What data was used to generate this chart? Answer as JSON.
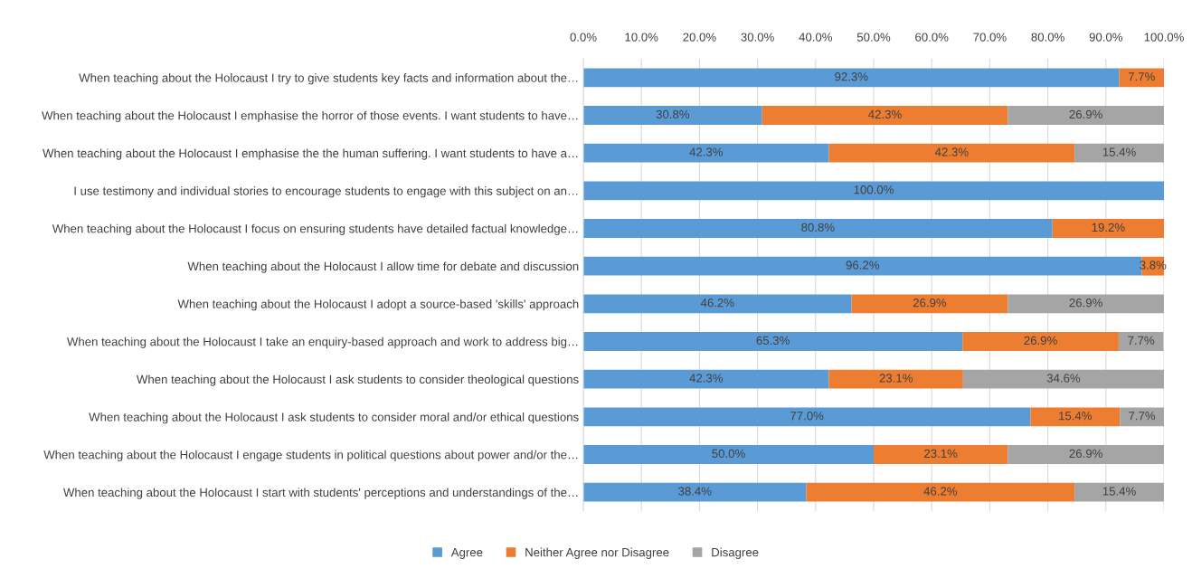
{
  "chart_data": {
    "type": "bar",
    "orientation": "horizontal",
    "stacked": true,
    "categories": [
      "When teaching about the Holocaust I try to give students key facts and information about the…",
      "When teaching about the Holocaust I emphasise the horror of those events. I want students to have…",
      "When teaching about the Holocaust I emphasise the the human suffering. I want students to have a…",
      "I use testimony and individual stories to encourage students to engage with this subject on an…",
      "When teaching about the Holocaust I focus on ensuring students have detailed factual knowledge…",
      "When teaching about the Holocaust I allow time for debate and discussion",
      "When teaching about the Holocaust I adopt a source-based 'skills' approach",
      "When teaching about the Holocaust I take an enquiry-based approach and work to address big…",
      "When teaching about the Holocaust I ask students to consider theological questions",
      "When teaching about the Holocaust I ask students to consider moral and/or ethical questions",
      "When teaching about the Holocaust I engage students in political questions about power and/or the…",
      "When teaching about the Holocaust I start with students' perceptions and understandings of the…"
    ],
    "series": [
      {
        "name": "Agree",
        "color": "#5b9bd5",
        "values": [
          92.3,
          30.8,
          42.3,
          100.0,
          80.8,
          96.2,
          46.2,
          65.3,
          42.3,
          77.0,
          50.0,
          38.4
        ],
        "value_labels": [
          "92.3%",
          "30.8%",
          "42.3%",
          "100.0%",
          "80.8%",
          "96.2%",
          "46.2%",
          "65.3%",
          "42.3%",
          "77.0%",
          "50.0%",
          "38.4%"
        ]
      },
      {
        "name": "Neither Agree nor Disagree",
        "color": "#ed7d31",
        "values": [
          7.7,
          42.3,
          42.3,
          0,
          19.2,
          3.8,
          26.9,
          26.9,
          23.1,
          15.4,
          23.1,
          46.2
        ],
        "value_labels": [
          "7.7%",
          "42.3%",
          "42.3%",
          null,
          "19.2%",
          "3.8%",
          "26.9%",
          "26.9%",
          "23.1%",
          "15.4%",
          "23.1%",
          "46.2%"
        ]
      },
      {
        "name": "Disagree",
        "color": "#a5a5a5",
        "values": [
          0,
          26.9,
          15.4,
          0,
          0,
          0,
          26.9,
          7.7,
          34.6,
          7.7,
          26.9,
          15.4
        ],
        "value_labels": [
          null,
          "26.9%",
          "15.4%",
          null,
          null,
          null,
          "26.9%",
          "7.7%",
          "34.6%",
          "7.7%",
          "26.9%",
          "15.4%"
        ]
      }
    ],
    "xlim": [
      0,
      100
    ],
    "xticks": [
      {
        "value": 0,
        "label": "0.0%"
      },
      {
        "value": 10,
        "label": "10.0%"
      },
      {
        "value": 20,
        "label": "20.0%"
      },
      {
        "value": 30,
        "label": "30.0%"
      },
      {
        "value": 40,
        "label": "40.0%"
      },
      {
        "value": 50,
        "label": "50.0%"
      },
      {
        "value": 60,
        "label": "60.0%"
      },
      {
        "value": 70,
        "label": "70.0%"
      },
      {
        "value": 80,
        "label": "80.0%"
      },
      {
        "value": 90,
        "label": "90.0%"
      },
      {
        "value": 100,
        "label": "100.0%"
      }
    ],
    "grid": "x",
    "legend": "bottom"
  }
}
